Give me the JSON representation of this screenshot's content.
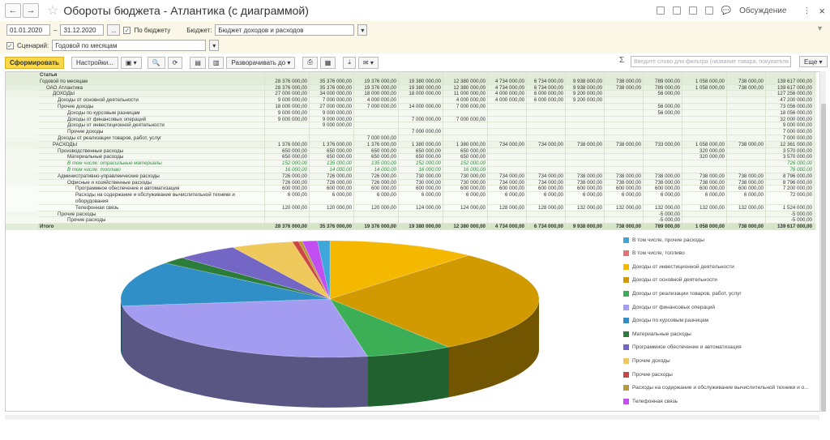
{
  "window": {
    "title": "Обороты бюджета - Атлантика (с диаграммой)",
    "discuss_label": "Обсуждение",
    "more_menu": "⋮",
    "close": "×",
    "funnel": "▼"
  },
  "params": {
    "date_from": "01.01.2020",
    "date_to": "31.12.2020",
    "dash": "–",
    "period_btn": "...",
    "by_budget_label": "По бюджету",
    "budget_label": "Бюджет:",
    "budget_value": "Бюджет доходов и расходов",
    "scenario_label": "Сценарий:",
    "scenario_value": "Годовой по месяцам"
  },
  "toolbar": {
    "generate": "Сформировать",
    "settings": "Настройки...",
    "expand": "Разворачивать до",
    "search_placeholder": "Введите слово для фильтра (название товара, покупателя...",
    "sigma": "Σ",
    "more": "Еще"
  },
  "report": {
    "header_label": "Статья",
    "rows": [
      {
        "label": "Годовой по месяцам",
        "level": "root",
        "values": [
          "28 376 000,00",
          "35 376 000,00",
          "19 376 000,00",
          "19 380 000,00",
          "12 380 000,00",
          "4 734 000,00",
          "6 734 000,00",
          "9 938 000,00",
          "738 000,00",
          "789 000,00",
          "1 058 000,00",
          "738 000,00",
          "139 617 000,00"
        ]
      },
      {
        "label": "ОАО Атлантика",
        "level": "1",
        "values": [
          "28 376 000,00",
          "35 376 000,00",
          "19 376 000,00",
          "19 380 000,00",
          "12 380 000,00",
          "4 734 000,00",
          "6 734 000,00",
          "9 938 000,00",
          "738 000,00",
          "789 000,00",
          "1 058 000,00",
          "738 000,00",
          "139 617 000,00"
        ]
      },
      {
        "label": "ДОХОДЫ",
        "level": "2",
        "values": [
          "27 000 000,00",
          "34 000 000,00",
          "18 000 000,00",
          "18 000 000,00",
          "11 000 000,00",
          "4 000 000,00",
          "6 000 000,00",
          "9 200 000,00",
          "",
          "56 000,00",
          "",
          "",
          "127 256 000,00"
        ]
      },
      {
        "label": "Доходы от основной деятельности",
        "level": "3",
        "values": [
          "9 000 000,00",
          "7 000 000,00",
          "4 000 000,00",
          "",
          "4 000 000,00",
          "4 000 000,00",
          "6 000 000,00",
          "9 200 000,00",
          "",
          "",
          "",
          "",
          "47 200 000,00"
        ]
      },
      {
        "label": "Прочие доходы",
        "level": "3",
        "values": [
          "18 000 000,00",
          "27 000 000,00",
          "7 000 000,00",
          "14 000 000,00",
          "7 000 000,00",
          "",
          "",
          "",
          "",
          "56 000,00",
          "",
          "",
          "73 056 000,00"
        ]
      },
      {
        "label": "Доходы по курсовым разницам",
        "level": "4",
        "values": [
          "9 000 000,00",
          "9 000 000,00",
          "",
          "",
          "",
          "",
          "",
          "",
          "",
          "56 000,00",
          "",
          "",
          "18 056 000,00"
        ]
      },
      {
        "label": "Доходы от финансовых операций",
        "level": "4",
        "values": [
          "9 000 000,00",
          "9 000 000,00",
          "",
          "7 000 000,00",
          "7 000 000,00",
          "",
          "",
          "",
          "",
          "",
          "",
          "",
          "32 000 000,00"
        ]
      },
      {
        "label": "Доходы от инвестиционной деятельности",
        "level": "4",
        "values": [
          "",
          "9 000 000,00",
          "",
          "",
          "",
          "",
          "",
          "",
          "",
          "",
          "",
          "",
          "9 000 000,00"
        ]
      },
      {
        "label": "Прочие доходы",
        "level": "4",
        "values": [
          "",
          "",
          "",
          "7 000 000,00",
          "",
          "",
          "",
          "",
          "",
          "",
          "",
          "",
          "7 000 000,00"
        ]
      },
      {
        "label": "Доходы от реализации товаров, работ, услуг",
        "level": "3",
        "values": [
          "",
          "",
          "7 000 000,00",
          "",
          "",
          "",
          "",
          "",
          "",
          "",
          "",
          "",
          "7 000 000,00"
        ]
      },
      {
        "label": "РАСХОДЫ",
        "level": "2",
        "values": [
          "1 376 000,00",
          "1 376 000,00",
          "1 376 000,00",
          "1 380 000,00",
          "1 380 000,00",
          "734 000,00",
          "734 000,00",
          "738 000,00",
          "738 000,00",
          "733 000,00",
          "1 058 000,00",
          "738 000,00",
          "12 361 000,00"
        ]
      },
      {
        "label": "Производственные расходы",
        "level": "3",
        "values": [
          "650 000,00",
          "650 000,00",
          "650 000,00",
          "650 000,00",
          "650 000,00",
          "",
          "",
          "",
          "",
          "",
          "320 000,00",
          "",
          "3 570 000,00"
        ]
      },
      {
        "label": "Материальные расходы",
        "level": "4",
        "values": [
          "650 000,00",
          "650 000,00",
          "650 000,00",
          "650 000,00",
          "650 000,00",
          "",
          "",
          "",
          "",
          "",
          "320 000,00",
          "",
          "3 570 000,00"
        ]
      },
      {
        "label": "В том числе: отрасильные материалы",
        "level": "4",
        "green": true,
        "values": [
          "152 000,00",
          "135 000,00",
          "135 000,00",
          "152 000,00",
          "152 000,00",
          "",
          "",
          "",
          "",
          "",
          "",
          "",
          "726 000,00"
        ]
      },
      {
        "label": "В том числе: топливо",
        "level": "4",
        "green": true,
        "values": [
          "16 000,00",
          "14 000,00",
          "14 000,00",
          "16 000,00",
          "16 000,00",
          "",
          "",
          "",
          "",
          "",
          "",
          "",
          "76 000,00"
        ]
      },
      {
        "label": "Административно-управленческие расходы",
        "level": "3",
        "values": [
          "726 000,00",
          "726 000,00",
          "726 000,00",
          "730 000,00",
          "730 000,00",
          "734 000,00",
          "734 000,00",
          "738 000,00",
          "738 000,00",
          "738 000,00",
          "738 000,00",
          "738 000,00",
          "8 796 000,00"
        ]
      },
      {
        "label": "Офисные и хозяйственные расходы",
        "level": "4",
        "values": [
          "726 000,00",
          "726 000,00",
          "726 000,00",
          "730 000,00",
          "730 000,00",
          "734 000,00",
          "734 000,00",
          "738 000,00",
          "738 000,00",
          "738 000,00",
          "738 000,00",
          "738 000,00",
          "8 796 000,00"
        ]
      },
      {
        "label": "Программное обеспечение и автоматизация",
        "level": "5",
        "values": [
          "600 000,00",
          "600 000,00",
          "600 000,00",
          "600 000,00",
          "600 000,00",
          "600 000,00",
          "600 000,00",
          "600 000,00",
          "600 000,00",
          "600 000,00",
          "600 000,00",
          "600 000,00",
          "7 200 000,00"
        ]
      },
      {
        "label": "Расходы на содержание и обслуживание вычислительной техники и оборудования",
        "level": "5",
        "tall": true,
        "values": [
          "6 000,00",
          "6 000,00",
          "6 000,00",
          "6 000,00",
          "6 000,00",
          "6 000,00",
          "6 000,00",
          "6 000,00",
          "6 000,00",
          "6 000,00",
          "6 000,00",
          "6 000,00",
          "72 000,00"
        ]
      },
      {
        "label": "Телефонная связь",
        "level": "5",
        "values": [
          "120 000,00",
          "120 000,00",
          "120 000,00",
          "124 000,00",
          "124 000,00",
          "128 000,00",
          "128 000,00",
          "132 000,00",
          "132 000,00",
          "132 000,00",
          "132 000,00",
          "132 000,00",
          "1 524 000,00"
        ]
      },
      {
        "label": "Прочие расходы",
        "level": "3",
        "values": [
          "",
          "",
          "",
          "",
          "",
          "",
          "",
          "",
          "",
          "-5 000,00",
          "",
          "",
          "-5 000,00"
        ]
      },
      {
        "label": "Прочие расходы",
        "level": "4",
        "values": [
          "",
          "",
          "",
          "",
          "",
          "",
          "",
          "",
          "",
          "-5 000,00",
          "",
          "",
          "-5 000,00"
        ]
      },
      {
        "label": "Итого",
        "level": "total",
        "values": [
          "28 376 000,00",
          "35 376 000,00",
          "19 376 000,00",
          "19 380 000,00",
          "12 380 000,00",
          "4 734 000,00",
          "6 734 000,00",
          "9 938 000,00",
          "738 000,00",
          "789 000,00",
          "1 058 000,00",
          "738 000,00",
          "139 617 000,00"
        ]
      }
    ]
  },
  "chart_data": {
    "type": "pie",
    "title": "",
    "slices": [
      {
        "name": "В том числе, прочие расходы",
        "value": 1.0,
        "color": "#3ea6d9"
      },
      {
        "name": "Доходы от инвестиционной деятельности",
        "value": 12.0,
        "color": "#f5b800"
      },
      {
        "name": "Доходы от основной деятельности",
        "value": 30.0,
        "color": "#d09a00"
      },
      {
        "name": "Доходы от реализации товаров, работ, услуг",
        "value": 7.0,
        "color": "#3cae55"
      },
      {
        "name": "Доходы от финансовых операций",
        "value": 27.0,
        "color": "#a49cf0"
      },
      {
        "name": "Доходы по курсовым разницам",
        "value": 13.0,
        "color": "#2f8fc6"
      },
      {
        "name": "Материальные расходы",
        "value": 2.0,
        "color": "#2d7d3a"
      },
      {
        "name": "Программное обеспечение и автоматизация",
        "value": 5.0,
        "color": "#7366c4"
      },
      {
        "name": "Прочие доходы",
        "value": 5.0,
        "color": "#efc95c"
      },
      {
        "name": "Прочие расходы",
        "value": 0.5,
        "color": "#cc4444"
      },
      {
        "name": "Расходы на содержание и обслуживание вычислительной техники и о...",
        "value": 0.3,
        "color": "#b89a3a"
      },
      {
        "name": "Телефонная связь",
        "value": 1.2,
        "color": "#c04ef0"
      }
    ],
    "legend_extra": [
      {
        "name": "В том числе, топливо",
        "color": "#e57373"
      }
    ],
    "legend_position": "right"
  }
}
